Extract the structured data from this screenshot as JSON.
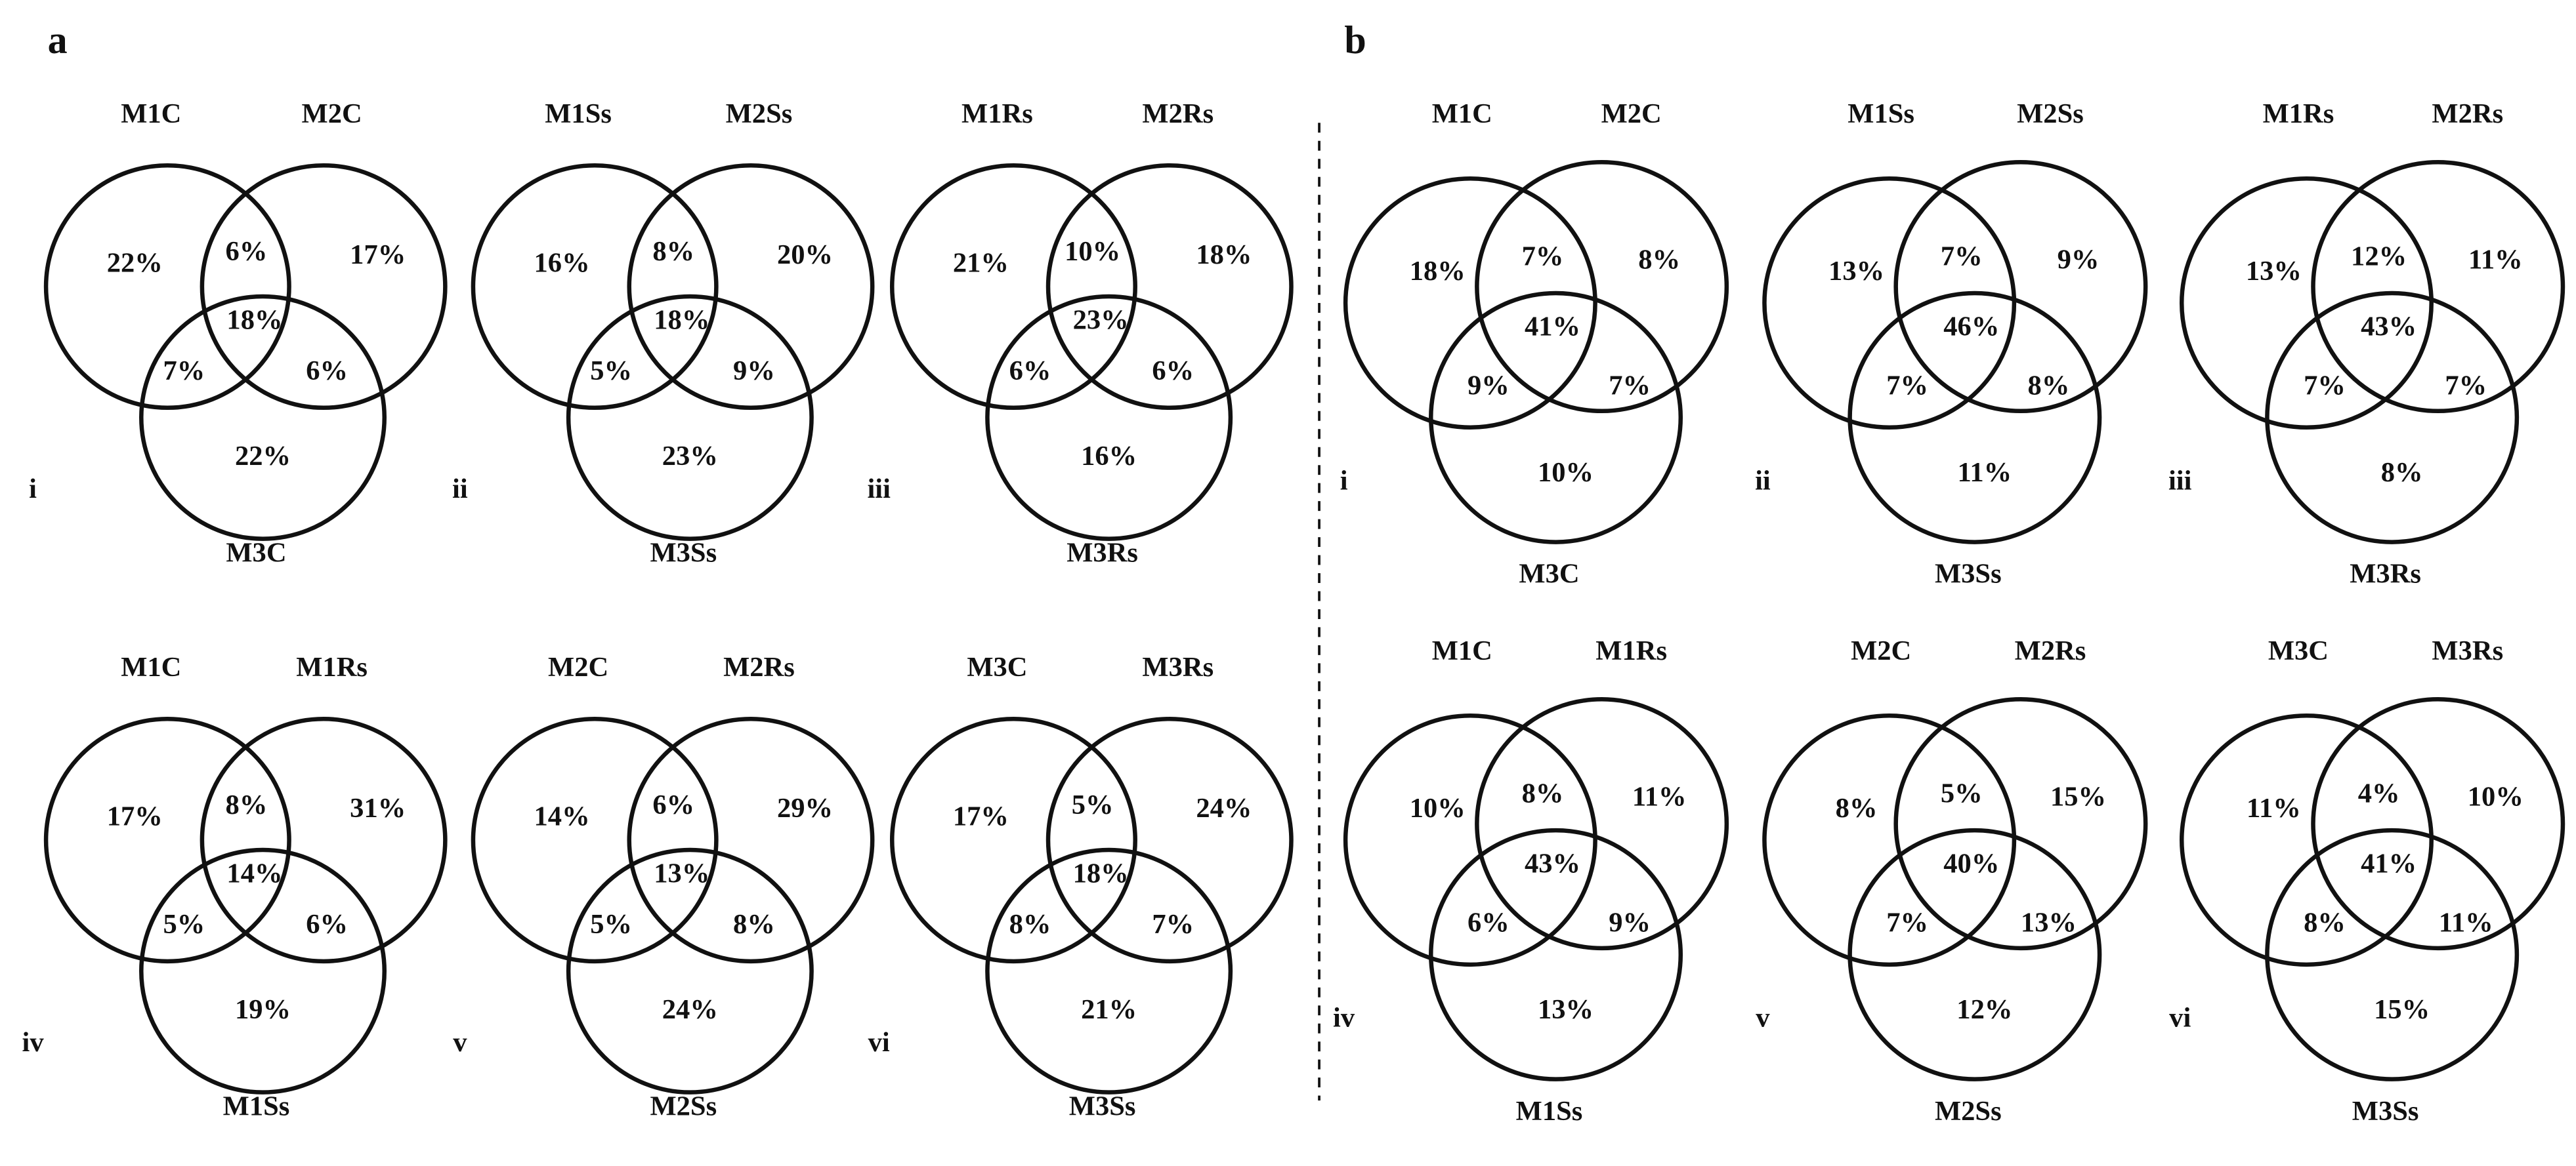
{
  "panels": [
    {
      "label": "a",
      "venns": [
        {
          "numeral": "i",
          "sets": [
            "M1C",
            "M2C",
            "M3C"
          ],
          "regions": [
            "22%",
            "6%",
            "17%",
            "18%",
            "7%",
            "6%",
            "22%"
          ]
        },
        {
          "numeral": "ii",
          "sets": [
            "M1Ss",
            "M2Ss",
            "M3Ss"
          ],
          "regions": [
            "16%",
            "8%",
            "20%",
            "18%",
            "5%",
            "9%",
            "23%"
          ]
        },
        {
          "numeral": "iii",
          "sets": [
            "M1Rs",
            "M2Rs",
            "M3Rs"
          ],
          "regions": [
            "21%",
            "10%",
            "18%",
            "23%",
            "6%",
            "6%",
            "16%"
          ]
        },
        {
          "numeral": "iv",
          "sets": [
            "M1C",
            "M1Rs",
            "M1Ss"
          ],
          "regions": [
            "17%",
            "8%",
            "31%",
            "14%",
            "5%",
            "6%",
            "19%"
          ]
        },
        {
          "numeral": "v",
          "sets": [
            "M2C",
            "M2Rs",
            "M2Ss"
          ],
          "regions": [
            "14%",
            "6%",
            "29%",
            "13%",
            "5%",
            "8%",
            "24%"
          ]
        },
        {
          "numeral": "vi",
          "sets": [
            "M3C",
            "M3Rs",
            "M3Ss"
          ],
          "regions": [
            "17%",
            "5%",
            "24%",
            "18%",
            "8%",
            "7%",
            "21%"
          ]
        }
      ]
    },
    {
      "label": "b",
      "venns": [
        {
          "numeral": "i",
          "sets": [
            "M1C",
            "M2C",
            "M3C"
          ],
          "regions": [
            "18%",
            "7%",
            "8%",
            "41%",
            "9%",
            "7%",
            "10%"
          ]
        },
        {
          "numeral": "ii",
          "sets": [
            "M1Ss",
            "M2Ss",
            "M3Ss"
          ],
          "regions": [
            "13%",
            "7%",
            "9%",
            "46%",
            "7%",
            "8%",
            "11%"
          ]
        },
        {
          "numeral": "iii",
          "sets": [
            "M1Rs",
            "M2Rs",
            "M3Rs"
          ],
          "regions": [
            "13%",
            "12%",
            "11%",
            "43%",
            "7%",
            "7%",
            "8%"
          ]
        },
        {
          "numeral": "iv",
          "sets": [
            "M1C",
            "M1Rs",
            "M1Ss"
          ],
          "regions": [
            "10%",
            "8%",
            "11%",
            "43%",
            "6%",
            "9%",
            "13%"
          ]
        },
        {
          "numeral": "v",
          "sets": [
            "M2C",
            "M2Rs",
            "M2Ss"
          ],
          "regions": [
            "8%",
            "5%",
            "15%",
            "40%",
            "7%",
            "13%",
            "12%"
          ]
        },
        {
          "numeral": "vi",
          "sets": [
            "M3C",
            "M3Rs",
            "M3Ss"
          ],
          "regions": [
            "11%",
            "4%",
            "10%",
            "41%",
            "8%",
            "11%",
            "15%"
          ]
        }
      ]
    }
  ]
}
